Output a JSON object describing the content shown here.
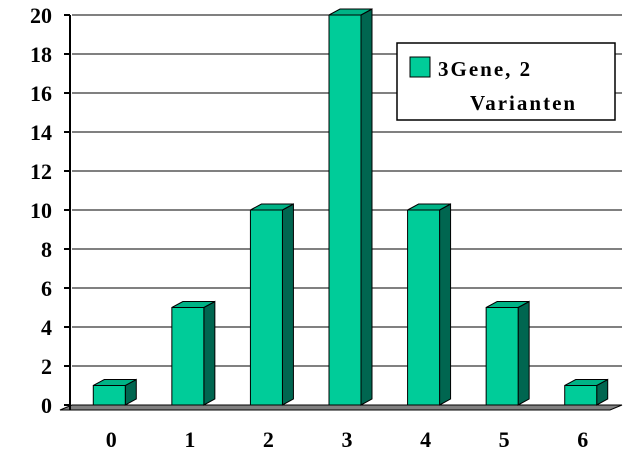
{
  "chart_data": {
    "type": "bar",
    "categories": [
      "0",
      "1",
      "2",
      "3",
      "4",
      "5",
      "6"
    ],
    "series": [
      {
        "name": "3Gene, 2 Varianten",
        "values": [
          1,
          5,
          10,
          20,
          10,
          5,
          1
        ]
      }
    ],
    "ylim": [
      0,
      20
    ],
    "yticks": [
      "0",
      "2",
      "4",
      "6",
      "8",
      "10",
      "12",
      "14",
      "16",
      "18",
      "20"
    ],
    "grid": true,
    "legend_position": "top-right",
    "legend_lines": [
      "3Gene, 2",
      "Varianten"
    ],
    "colors": {
      "bar_front": "#00cc99",
      "bar_side": "#006650",
      "bar_top": "#00b386",
      "floor": "#808080",
      "grid": "#000000"
    }
  }
}
